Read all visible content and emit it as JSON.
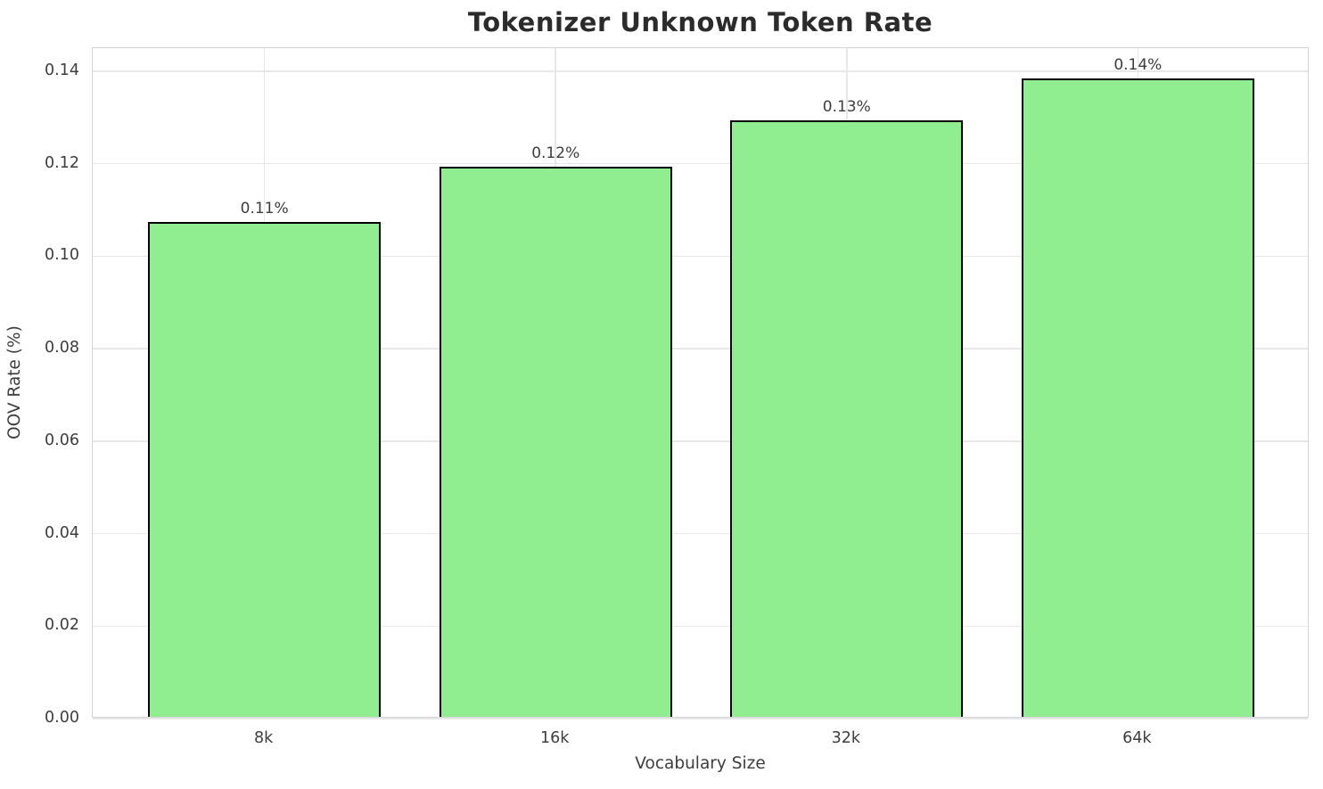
{
  "chart_data": {
    "type": "bar",
    "title": "Tokenizer Unknown Token Rate",
    "xlabel": "Vocabulary Size",
    "ylabel": "OOV Rate (%)",
    "categories": [
      "8k",
      "16k",
      "32k",
      "64k"
    ],
    "values": [
      0.107,
      0.119,
      0.129,
      0.138
    ],
    "bar_labels": [
      "0.11%",
      "0.12%",
      "0.13%",
      "0.14%"
    ],
    "ylim": [
      0,
      0.145
    ],
    "yticks": [
      0.0,
      0.02,
      0.04,
      0.06,
      0.08,
      0.1,
      0.12,
      0.14
    ],
    "ytick_labels": [
      "0.00",
      "0.02",
      "0.04",
      "0.06",
      "0.08",
      "0.10",
      "0.12",
      "0.14"
    ],
    "grid": "both",
    "legend": "none",
    "bar_color": "#90EE90",
    "bar_edge_color": "#000000",
    "grid_color": "#e7e7e7",
    "spine_color": "#d4d4d4",
    "text_color": "#3d3d3d",
    "title_color": "#2b2b2b",
    "background_color": "#ffffff"
  }
}
